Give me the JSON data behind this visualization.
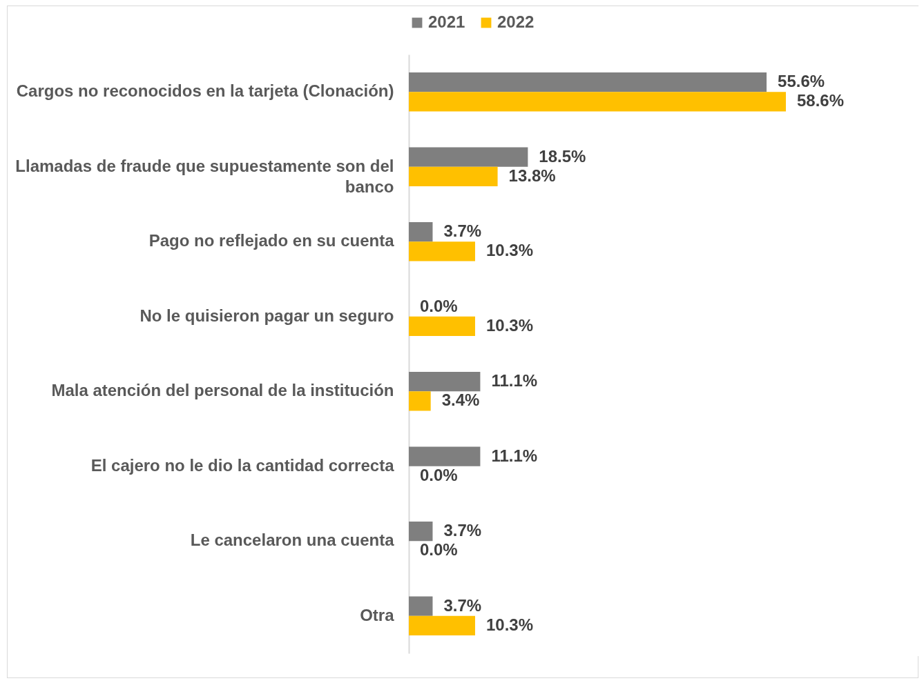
{
  "chart_data": {
    "type": "bar",
    "orientation": "horizontal",
    "legend": "top",
    "tick_labels": "y",
    "categories": [
      "Cargos no reconocidos en la tarjeta (Clonación)",
      "Llamadas de fraude que supuestamente son del banco",
      "Pago no reflejado en su cuenta",
      "No le quisieron pagar un seguro",
      "Mala atención del personal de la institución",
      "El cajero no le dio la cantidad correcta",
      "Le cancelaron una cuenta",
      "Otra"
    ],
    "series": [
      {
        "name": "2021",
        "color": "#7f7f7f",
        "values": [
          55.6,
          18.5,
          3.7,
          0.0,
          11.1,
          11.1,
          3.7,
          3.7
        ],
        "value_labels": [
          "55.6%",
          "18.5%",
          "3.7%",
          "0.0%",
          "11.1%",
          "11.1%",
          "3.7%",
          "3.7%"
        ]
      },
      {
        "name": "2022",
        "color": "#ffc000",
        "values": [
          58.6,
          13.8,
          10.3,
          10.3,
          3.4,
          0.0,
          0.0,
          10.3
        ],
        "value_labels": [
          "58.6%",
          "13.8%",
          "10.3%",
          "10.3%",
          "3.4%",
          "0.0%",
          "0.0%",
          "10.3%"
        ]
      }
    ]
  }
}
